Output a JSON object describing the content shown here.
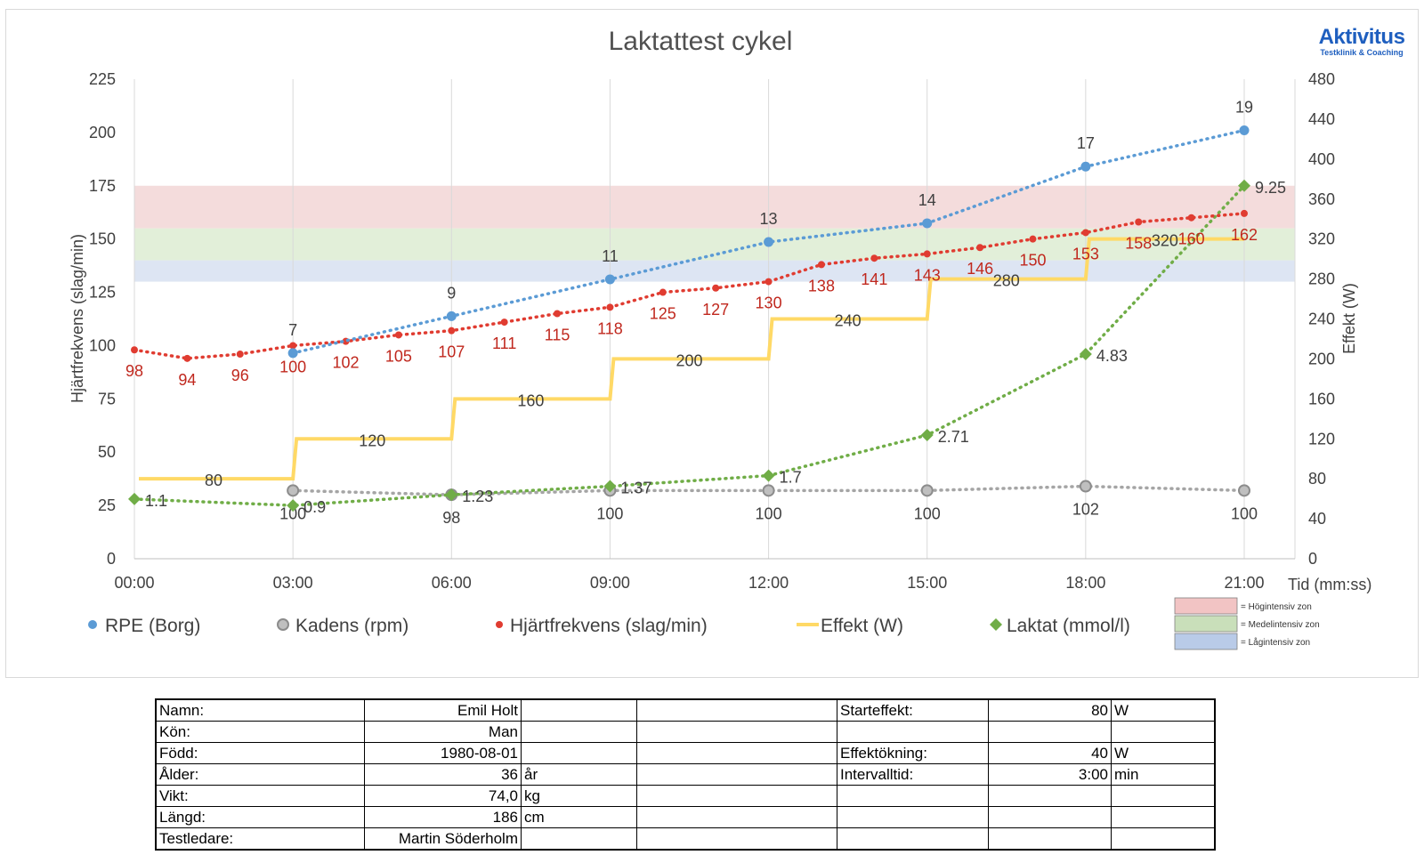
{
  "chart_data": {
    "type": "line",
    "title": "Laktattest cykel",
    "xlabel": "Tid (mm:ss)",
    "ylabel_left": "Hjärtfrekvens (slag/min)",
    "ylabel_right": "Effekt (W)",
    "x_ticks": [
      "00:00",
      "03:00",
      "06:00",
      "09:00",
      "12:00",
      "15:00",
      "18:00",
      "21:00"
    ],
    "x_range_minutes": [
      0,
      21
    ],
    "ylim_left": [
      0,
      225
    ],
    "yticks_left": [
      0,
      25,
      50,
      75,
      100,
      125,
      150,
      175,
      200,
      225
    ],
    "ylim_right": [
      0,
      480
    ],
    "yticks_right": [
      0,
      40,
      80,
      120,
      160,
      200,
      240,
      280,
      320,
      360,
      400,
      440,
      480
    ],
    "grid": "vertical",
    "legend_position": "bottom",
    "zones": [
      {
        "label": "= Högintensiv zon",
        "from": 155,
        "to": 175,
        "color": "#f4dcdc"
      },
      {
        "label": "= Medelintensiv zon",
        "from": 140,
        "to": 155,
        "color": "#e2efd9"
      },
      {
        "label": "= Lågintensiv zon",
        "from": 130,
        "to": 140,
        "color": "#dde5f3"
      }
    ],
    "series": [
      {
        "name": "RPE (Borg)",
        "color": "#5b9bd5",
        "marker": "circle",
        "x": [
          3,
          6,
          9,
          12,
          15,
          18,
          21
        ],
        "values": [
          7,
          9,
          11,
          13,
          14,
          17,
          19
        ],
        "plot_values": [
          96.5,
          113.8,
          131.1,
          148.6,
          157.4,
          184,
          201
        ]
      },
      {
        "name": "Kadens (rpm)",
        "color": "#a5a5a5",
        "marker": "circle-ring",
        "x": [
          3,
          6,
          9,
          12,
          15,
          18,
          21
        ],
        "values": [
          100,
          98,
          100,
          100,
          100,
          102,
          100
        ],
        "plot_values": [
          32,
          30,
          32,
          32,
          32,
          34,
          32
        ]
      },
      {
        "name": "Hjärtfrekvens (slag/min)",
        "color": "#e03c31",
        "marker": "dot",
        "x": [
          0,
          1,
          2,
          3,
          4,
          5,
          6,
          7,
          8,
          9,
          10,
          11,
          12,
          13,
          14,
          15,
          16,
          17,
          18,
          19,
          20,
          21
        ],
        "values": [
          98,
          94,
          96,
          100,
          102,
          105,
          107,
          111,
          115,
          118,
          125,
          127,
          130,
          138,
          141,
          143,
          146,
          150,
          153,
          158,
          160,
          162
        ]
      },
      {
        "name": "Effekt (W)",
        "color": "#ffd966",
        "marker": "none",
        "axis": "right",
        "x": [
          0,
          3,
          6,
          9,
          12,
          15,
          18,
          21
        ],
        "values": [
          80,
          120,
          160,
          200,
          240,
          280,
          320,
          320
        ],
        "labels": [
          "80",
          "120",
          "160",
          "200",
          "240",
          "280",
          "320"
        ]
      },
      {
        "name": "Laktat (mmol/l)",
        "color": "#70ad47",
        "marker": "diamond",
        "x": [
          0,
          3,
          6,
          9,
          12,
          15,
          18,
          21
        ],
        "values": [
          1.1,
          0.9,
          1.23,
          1.37,
          1.7,
          2.71,
          4.83,
          9.25
        ],
        "labels": [
          "1.1",
          "0.9",
          "1.23",
          "1.37",
          "1.7",
          "2.71",
          "4.83",
          "9.25"
        ],
        "plot_values": [
          28,
          25,
          30,
          34,
          39,
          58,
          96,
          175
        ]
      }
    ]
  },
  "logo": {
    "brand": "Aktivitus",
    "tagline": "Testklinik & Coaching"
  },
  "info_table": {
    "rows": [
      [
        "Namn:",
        "Emil Holt",
        "",
        "",
        "Starteffekt:",
        "80",
        "W"
      ],
      [
        "Kön:",
        "Man",
        "",
        "",
        "",
        "",
        ""
      ],
      [
        "Född:",
        "1980-08-01",
        "",
        "",
        "Effektökning:",
        "40",
        "W"
      ],
      [
        "Ålder:",
        "36",
        "år",
        "",
        "Intervalltid:",
        "3:00",
        "min"
      ],
      [
        "Vikt:",
        "74,0",
        "kg",
        "",
        "",
        "",
        ""
      ],
      [
        "Längd:",
        "186",
        "cm",
        "",
        "",
        "",
        ""
      ],
      [
        "Testledare:",
        "Martin Söderholm",
        "",
        "",
        "",
        "",
        ""
      ]
    ]
  }
}
